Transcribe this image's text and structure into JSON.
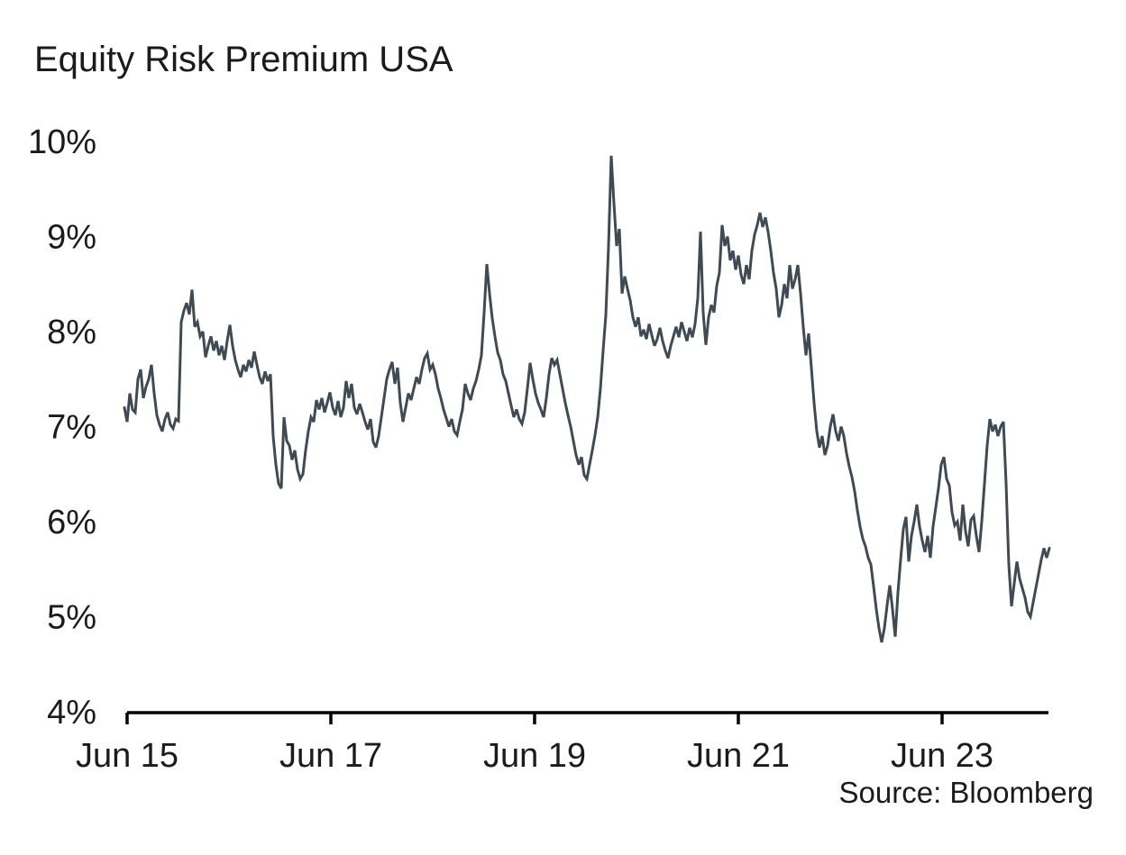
{
  "chart_data": {
    "type": "line",
    "title": "Equity Risk Premium USA",
    "source": "Source: Bloomberg",
    "xlabel": "",
    "ylabel": "",
    "grid": false,
    "legend": "none",
    "background": "#ffffff",
    "axis_color": "#000000",
    "text_color": "#1b1b1b",
    "ylim": [
      4,
      10
    ],
    "xlim": [
      2015.42,
      2024.5
    ],
    "y_ticks": [
      {
        "value": 10,
        "label": "10%"
      },
      {
        "value": 9,
        "label": "9%"
      },
      {
        "value": 8,
        "label": "8%"
      },
      {
        "value": 7,
        "label": "7%"
      },
      {
        "value": 6,
        "label": "6%"
      },
      {
        "value": 5,
        "label": "5%"
      },
      {
        "value": 4,
        "label": "4%"
      }
    ],
    "x_ticks": [
      {
        "year": 2015.45,
        "label": "Jun 15"
      },
      {
        "year": 2017.45,
        "label": "Jun 17"
      },
      {
        "year": 2019.45,
        "label": "Jun 19"
      },
      {
        "year": 2021.45,
        "label": "Jun 21"
      },
      {
        "year": 2023.45,
        "label": "Jun 23"
      }
    ],
    "series": [
      {
        "name": "Equity Risk Premium USA",
        "unit": "%",
        "color": "#3E4B55",
        "start_year": 2015.4235,
        "step_years": 0.0265487,
        "values": [
          7.2,
          7.05,
          7.35,
          7.18,
          7.15,
          7.5,
          7.6,
          7.3,
          7.42,
          7.5,
          7.65,
          7.35,
          7.12,
          7.02,
          6.95,
          7.08,
          7.15,
          7.02,
          6.98,
          7.08,
          7.06,
          8.1,
          8.22,
          8.3,
          8.18,
          8.44,
          8.05,
          8.1,
          7.95,
          8.0,
          7.73,
          7.85,
          7.95,
          7.8,
          7.9,
          7.75,
          7.85,
          7.7,
          7.9,
          8.07,
          7.85,
          7.7,
          7.6,
          7.52,
          7.65,
          7.58,
          7.7,
          7.62,
          7.79,
          7.65,
          7.52,
          7.45,
          7.58,
          7.48,
          7.55,
          6.9,
          6.6,
          6.4,
          6.35,
          7.1,
          6.85,
          6.8,
          6.65,
          6.75,
          6.55,
          6.45,
          6.5,
          6.75,
          6.95,
          7.1,
          7.05,
          7.28,
          7.18,
          7.3,
          7.15,
          7.25,
          7.36,
          7.2,
          7.12,
          7.27,
          7.1,
          7.2,
          7.48,
          7.3,
          7.45,
          7.2,
          7.13,
          7.24,
          7.15,
          7.05,
          6.97,
          7.08,
          6.84,
          6.78,
          6.9,
          7.1,
          7.3,
          7.5,
          7.6,
          7.68,
          7.45,
          7.62,
          7.25,
          7.05,
          7.2,
          7.35,
          7.28,
          7.4,
          7.52,
          7.45,
          7.6,
          7.72,
          7.77,
          7.6,
          7.65,
          7.55,
          7.4,
          7.3,
          7.18,
          7.09,
          7.0,
          7.08,
          6.95,
          6.91,
          7.05,
          7.18,
          7.45,
          7.35,
          7.28,
          7.4,
          7.48,
          7.6,
          7.75,
          8.2,
          8.71,
          8.4,
          8.14,
          7.95,
          7.78,
          7.7,
          7.55,
          7.48,
          7.35,
          7.22,
          7.1,
          7.18,
          7.08,
          7.03,
          7.15,
          7.4,
          7.67,
          7.5,
          7.35,
          7.25,
          7.18,
          7.1,
          7.3,
          7.55,
          7.72,
          7.65,
          7.7,
          7.55,
          7.4,
          7.25,
          7.12,
          7.0,
          6.85,
          6.7,
          6.6,
          6.68,
          6.49,
          6.45,
          6.6,
          6.75,
          6.91,
          7.1,
          7.4,
          7.8,
          8.17,
          8.9,
          9.85,
          9.35,
          8.9,
          9.08,
          8.4,
          8.58,
          8.45,
          8.33,
          8.15,
          8.05,
          8.15,
          7.95,
          8.02,
          7.92,
          8.08,
          7.96,
          7.85,
          7.92,
          8.04,
          7.9,
          7.8,
          7.72,
          7.85,
          7.95,
          8.05,
          7.94,
          8.1,
          8.0,
          7.9,
          8.04,
          7.94,
          8.08,
          8.35,
          9.05,
          8.2,
          7.86,
          8.15,
          8.28,
          8.2,
          8.48,
          8.62,
          9.12,
          8.9,
          9.0,
          8.75,
          8.85,
          8.65,
          8.8,
          8.6,
          8.5,
          8.7,
          8.55,
          8.85,
          9.02,
          9.12,
          9.25,
          9.1,
          9.2,
          9.05,
          8.85,
          8.62,
          8.45,
          8.15,
          8.28,
          8.5,
          8.35,
          8.7,
          8.45,
          8.55,
          8.7,
          8.4,
          8.05,
          7.75,
          7.98,
          7.62,
          7.25,
          6.95,
          6.78,
          6.9,
          6.7,
          6.8,
          7.0,
          7.13,
          6.95,
          6.85,
          7.0,
          6.9,
          6.72,
          6.58,
          6.47,
          6.32,
          6.12,
          5.95,
          5.82,
          5.74,
          5.62,
          5.55,
          5.32,
          5.08,
          4.88,
          4.73,
          4.88,
          5.12,
          5.33,
          5.08,
          4.79,
          5.25,
          5.6,
          5.92,
          6.05,
          5.58,
          5.85,
          6.0,
          6.18,
          5.95,
          5.8,
          5.68,
          5.85,
          5.62,
          5.95,
          6.15,
          6.35,
          6.6,
          6.68,
          6.45,
          6.38,
          6.1,
          5.96,
          6.0,
          5.8,
          6.18,
          5.9,
          5.74,
          6.02,
          6.06,
          5.85,
          5.68,
          6.0,
          6.4,
          6.8,
          7.08,
          6.95,
          7.02,
          6.9,
          7.0,
          7.05,
          6.4,
          5.55,
          5.11,
          5.35,
          5.58,
          5.4,
          5.3,
          5.2,
          5.05,
          5.0,
          5.15,
          5.3,
          5.45,
          5.6,
          5.72,
          5.62,
          5.72
        ]
      }
    ]
  }
}
